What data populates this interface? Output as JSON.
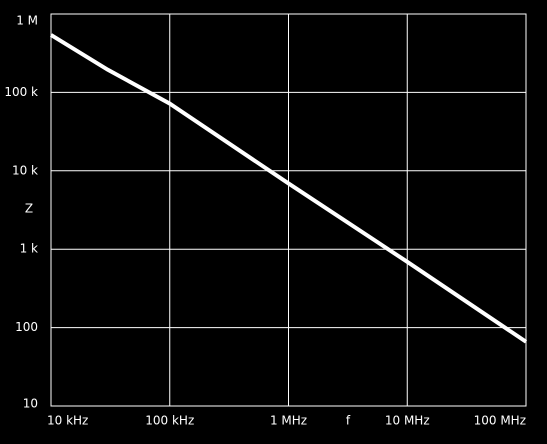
{
  "chart_data": {
    "type": "line",
    "x_label": "f",
    "y_label": "Z",
    "x": [
      10000,
      30000,
      100000,
      1000000,
      10000000,
      100000000
    ],
    "series": [
      {
        "color": "#ffffff",
        "values": [
          540000,
          195000,
          72000,
          6900,
          690,
          66
        ]
      }
    ],
    "xlim": [
      10000,
      100000000
    ],
    "ylim": [
      10,
      1000000
    ],
    "xscale": "log",
    "yscale": "log",
    "grid": true,
    "xticks": [
      {
        "value": 10000,
        "label": "10 kHz"
      },
      {
        "value": 100000,
        "label": "100 kHz"
      },
      {
        "value": 1000000,
        "label": "1 MHz"
      },
      {
        "value": 10000000,
        "label": "10 MHz"
      },
      {
        "value": 100000000,
        "label": "100 MHz"
      }
    ],
    "yticks": [
      {
        "value": 1000000,
        "label": "1 M"
      },
      {
        "value": 100000,
        "label": "100 k"
      },
      {
        "value": 10000,
        "label": "10 k"
      },
      {
        "value": 1000,
        "label": "1 k"
      },
      100,
      10
    ]
  }
}
